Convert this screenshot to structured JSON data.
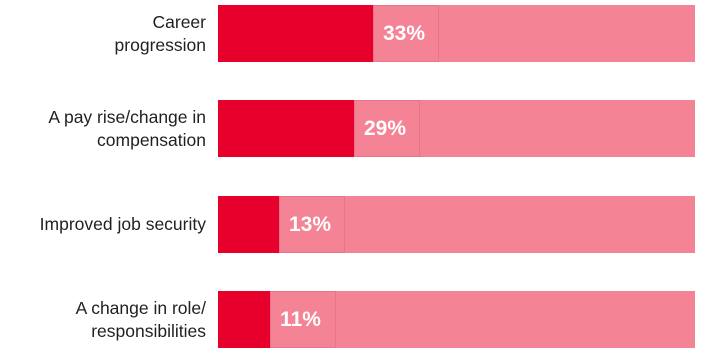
{
  "colors": {
    "accent": "#e8002d",
    "track": "#f38395",
    "label_text": "#231f20",
    "value_text": "#ffffff"
  },
  "chart_data": {
    "type": "bar",
    "orientation": "horizontal",
    "stacked_track": true,
    "categories": [
      "Career\nprogression",
      "A pay rise/change in\ncompensation",
      "Improved job security",
      "A change in role/\nresponsibilities"
    ],
    "values": [
      33,
      29,
      13,
      11
    ],
    "value_labels": [
      "33%",
      "29%",
      "13%",
      "11%"
    ],
    "unit": "%",
    "xlim": [
      0,
      100
    ],
    "grid": false,
    "legend": "none"
  }
}
